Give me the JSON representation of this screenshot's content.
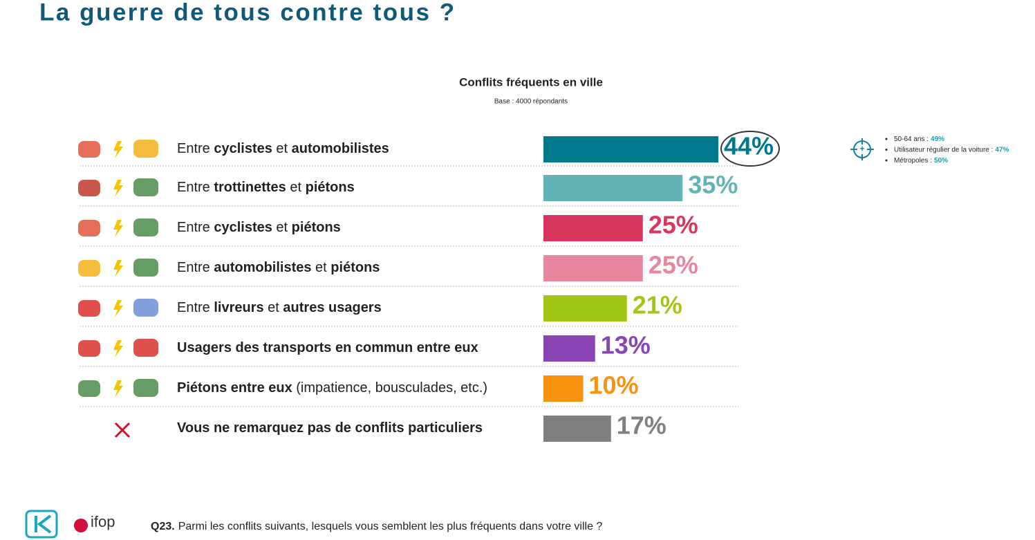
{
  "header": {
    "title": "La guerre de tous contre tous ?"
  },
  "chart_data": {
    "type": "bar",
    "orientation": "horizontal",
    "title": "Conflits fréquents en ville",
    "subtitle": "Base : 4000 répondants",
    "categories": [
      [
        {
          "text": "Entre "
        },
        {
          "text": "cyclistes",
          "bold": true
        },
        {
          "text": " et "
        },
        {
          "text": "automobilistes",
          "bold": true
        }
      ],
      [
        {
          "text": "Entre "
        },
        {
          "text": "trottinettes",
          "bold": true
        },
        {
          "text": " et "
        },
        {
          "text": "piétons",
          "bold": true
        }
      ],
      [
        {
          "text": "Entre "
        },
        {
          "text": "cyclistes",
          "bold": true
        },
        {
          "text": " et "
        },
        {
          "text": "piétons",
          "bold": true
        }
      ],
      [
        {
          "text": "Entre "
        },
        {
          "text": "automobilistes",
          "bold": true
        },
        {
          "text": " et "
        },
        {
          "text": "piétons",
          "bold": true
        }
      ],
      [
        {
          "text": "Entre "
        },
        {
          "text": "livreurs",
          "bold": true
        },
        {
          "text": " et "
        },
        {
          "text": "autres usagers",
          "bold": true
        }
      ],
      [
        {
          "text": "Usagers des transports en commun entre eux",
          "bold": true
        }
      ],
      [
        {
          "text": "Piétons entre eux",
          "bold": true
        },
        {
          "text": " (impatience, bousculades, etc.)"
        }
      ],
      [
        {
          "text": "Vous ne remarquez pas de conflits particuliers",
          "bold": true
        }
      ]
    ],
    "values": [
      44,
      35,
      25,
      25,
      21,
      13,
      10,
      17
    ],
    "value_labels": [
      "44%",
      "35%",
      "25%",
      "25%",
      "21%",
      "13%",
      "10%",
      "17%"
    ],
    "colors": [
      "#00798c",
      "#63b3b7",
      "#d9365e",
      "#e8859f",
      "#a2c617",
      "#8a45b5",
      "#f7930e",
      "#808080"
    ],
    "highlighted": 0,
    "annotations": [
      {
        "label": "50-64 ans :",
        "value": "49%"
      },
      {
        "label": "Utilisateur régulier de la voiture :",
        "value": "47%"
      },
      {
        "label": "Métropoles :",
        "value": "50%"
      }
    ]
  },
  "footer": {
    "logo": "ifop",
    "question_number": "Q23.",
    "question": "Parmi les conflits suivants, lesquels vous semblent les plus fréquents dans votre ville ?"
  }
}
